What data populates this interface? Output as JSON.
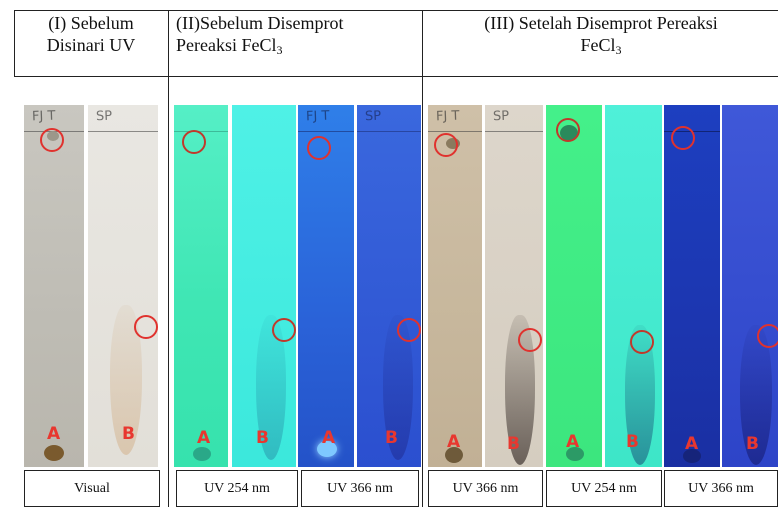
{
  "headers": {
    "col1_line1": "(I) Sebelum",
    "col1_line2": "Disinari UV",
    "col2_line1": "(II)Sebelum Disemprot",
    "col2_line2_text": "Pereaksi FeCl",
    "col2_line2_sub": "3",
    "col3_line1": "(III) Setelah Disemprot Pereaksi",
    "col3_line2_text": "FeCl",
    "col3_line2_sub": "3"
  },
  "strip_codes": {
    "a": "FJ T",
    "b": "SP"
  },
  "sample_labels": {
    "a": "A",
    "b": "B"
  },
  "footers": {
    "visual": "Visual",
    "uv254_ii": "UV 254 nm",
    "uv366_ii": "UV 366 nm",
    "uv366_iii_a": "UV 366 nm",
    "uv254_iii": "UV 254 nm",
    "uv366_iii_b": "UV 366 nm"
  },
  "colors": {
    "visual_strip": "#c8c6bf",
    "uv254_strip": "#3fe8b6",
    "uv366_strip": "#2f5ee0",
    "ring": "#e0322e",
    "label": "#e8372f"
  }
}
